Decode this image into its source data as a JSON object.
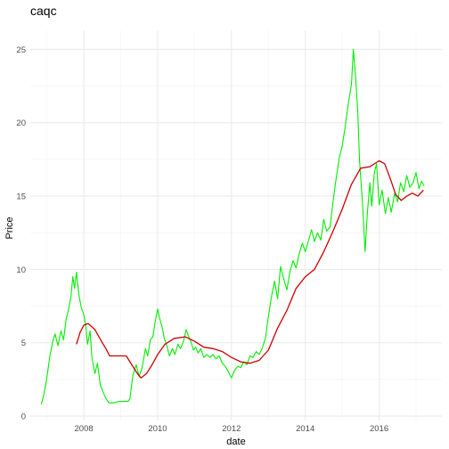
{
  "chart_data": {
    "type": "line",
    "title": "caqc",
    "xlabel": "date",
    "ylabel": "Price",
    "xlim": [
      2006.55,
      2017.7
    ],
    "ylim": [
      -0.3,
      26.3
    ],
    "x_ticks": [
      2008,
      2010,
      2012,
      2014,
      2016
    ],
    "y_ticks": [
      0,
      5,
      10,
      15,
      20,
      25
    ],
    "grid": true,
    "legend": "none",
    "series": [
      {
        "color": "#00ee00",
        "points": [
          [
            2006.85,
            0.8
          ],
          [
            2006.92,
            1.5
          ],
          [
            2007.0,
            2.6
          ],
          [
            2007.08,
            4.1
          ],
          [
            2007.15,
            5.0
          ],
          [
            2007.22,
            5.6
          ],
          [
            2007.3,
            4.8
          ],
          [
            2007.38,
            5.8
          ],
          [
            2007.45,
            5.2
          ],
          [
            2007.52,
            6.6
          ],
          [
            2007.58,
            7.2
          ],
          [
            2007.65,
            8.1
          ],
          [
            2007.7,
            9.5
          ],
          [
            2007.75,
            8.7
          ],
          [
            2007.8,
            9.8
          ],
          [
            2007.87,
            8.2
          ],
          [
            2007.93,
            7.4
          ],
          [
            2008.0,
            6.9
          ],
          [
            2008.05,
            6.2
          ],
          [
            2008.1,
            4.9
          ],
          [
            2008.17,
            5.8
          ],
          [
            2008.22,
            4.0
          ],
          [
            2008.3,
            2.9
          ],
          [
            2008.37,
            3.6
          ],
          [
            2008.45,
            2.1
          ],
          [
            2008.53,
            1.6
          ],
          [
            2008.6,
            1.2
          ],
          [
            2008.68,
            0.9
          ],
          [
            2008.8,
            0.9
          ],
          [
            2008.95,
            1.0
          ],
          [
            2009.1,
            1.0
          ],
          [
            2009.2,
            1.0
          ],
          [
            2009.25,
            1.2
          ],
          [
            2009.33,
            2.8
          ],
          [
            2009.42,
            3.5
          ],
          [
            2009.5,
            2.7
          ],
          [
            2009.58,
            3.3
          ],
          [
            2009.67,
            4.6
          ],
          [
            2009.73,
            4.1
          ],
          [
            2009.8,
            5.2
          ],
          [
            2009.87,
            5.4
          ],
          [
            2009.93,
            6.4
          ],
          [
            2010.0,
            7.3
          ],
          [
            2010.05,
            6.7
          ],
          [
            2010.12,
            6.1
          ],
          [
            2010.18,
            5.3
          ],
          [
            2010.25,
            4.8
          ],
          [
            2010.32,
            4.1
          ],
          [
            2010.4,
            4.6
          ],
          [
            2010.47,
            4.2
          ],
          [
            2010.55,
            4.9
          ],
          [
            2010.62,
            4.6
          ],
          [
            2010.7,
            5.1
          ],
          [
            2010.77,
            5.9
          ],
          [
            2010.83,
            5.5
          ],
          [
            2010.9,
            5.1
          ],
          [
            2010.97,
            4.5
          ],
          [
            2011.03,
            4.7
          ],
          [
            2011.1,
            4.3
          ],
          [
            2011.17,
            4.6
          ],
          [
            2011.25,
            4.0
          ],
          [
            2011.33,
            4.2
          ],
          [
            2011.42,
            4.0
          ],
          [
            2011.5,
            4.2
          ],
          [
            2011.58,
            3.9
          ],
          [
            2011.67,
            4.1
          ],
          [
            2011.75,
            3.6
          ],
          [
            2011.83,
            3.4
          ],
          [
            2011.92,
            3.0
          ],
          [
            2012.0,
            2.6
          ],
          [
            2012.08,
            3.1
          ],
          [
            2012.17,
            3.4
          ],
          [
            2012.25,
            3.3
          ],
          [
            2012.33,
            3.7
          ],
          [
            2012.42,
            3.5
          ],
          [
            2012.5,
            4.1
          ],
          [
            2012.58,
            4.0
          ],
          [
            2012.67,
            4.4
          ],
          [
            2012.75,
            4.2
          ],
          [
            2012.83,
            4.6
          ],
          [
            2012.92,
            5.3
          ],
          [
            2013.0,
            6.8
          ],
          [
            2013.08,
            8.1
          ],
          [
            2013.17,
            9.2
          ],
          [
            2013.25,
            8.0
          ],
          [
            2013.33,
            10.2
          ],
          [
            2013.42,
            9.3
          ],
          [
            2013.5,
            8.6
          ],
          [
            2013.58,
            9.8
          ],
          [
            2013.67,
            10.6
          ],
          [
            2013.75,
            10.1
          ],
          [
            2013.83,
            11.0
          ],
          [
            2013.92,
            11.8
          ],
          [
            2014.0,
            11.2
          ],
          [
            2014.08,
            11.9
          ],
          [
            2014.17,
            12.7
          ],
          [
            2014.25,
            11.9
          ],
          [
            2014.33,
            12.5
          ],
          [
            2014.42,
            12.0
          ],
          [
            2014.5,
            13.4
          ],
          [
            2014.58,
            12.6
          ],
          [
            2014.67,
            12.9
          ],
          [
            2014.75,
            14.6
          ],
          [
            2014.83,
            16.1
          ],
          [
            2014.92,
            17.6
          ],
          [
            2015.0,
            18.4
          ],
          [
            2015.08,
            19.7
          ],
          [
            2015.17,
            21.4
          ],
          [
            2015.25,
            22.6
          ],
          [
            2015.3,
            25.0
          ],
          [
            2015.35,
            23.6
          ],
          [
            2015.42,
            20.9
          ],
          [
            2015.47,
            17.4
          ],
          [
            2015.52,
            15.6
          ],
          [
            2015.57,
            13.7
          ],
          [
            2015.62,
            11.2
          ],
          [
            2015.68,
            13.8
          ],
          [
            2015.75,
            15.9
          ],
          [
            2015.8,
            14.3
          ],
          [
            2015.87,
            16.6
          ],
          [
            2015.93,
            17.2
          ],
          [
            2016.0,
            14.4
          ],
          [
            2016.08,
            15.4
          ],
          [
            2016.17,
            13.8
          ],
          [
            2016.25,
            14.9
          ],
          [
            2016.33,
            13.9
          ],
          [
            2016.42,
            15.2
          ],
          [
            2016.5,
            14.6
          ],
          [
            2016.58,
            15.9
          ],
          [
            2016.67,
            15.3
          ],
          [
            2016.75,
            16.4
          ],
          [
            2016.83,
            15.6
          ],
          [
            2016.92,
            15.9
          ],
          [
            2017.0,
            16.6
          ],
          [
            2017.08,
            15.5
          ],
          [
            2017.15,
            16.0
          ],
          [
            2017.22,
            15.7
          ]
        ]
      },
      {
        "color": "#cc0000",
        "points": [
          [
            2007.8,
            4.9
          ],
          [
            2007.9,
            5.7
          ],
          [
            2008.0,
            6.2
          ],
          [
            2008.12,
            6.3
          ],
          [
            2008.3,
            5.9
          ],
          [
            2008.5,
            5.0
          ],
          [
            2008.6,
            4.6
          ],
          [
            2008.7,
            4.1
          ],
          [
            2009.15,
            4.1
          ],
          [
            2009.3,
            3.5
          ],
          [
            2009.45,
            2.9
          ],
          [
            2009.55,
            2.6
          ],
          [
            2009.7,
            2.9
          ],
          [
            2009.85,
            3.5
          ],
          [
            2010.0,
            4.2
          ],
          [
            2010.2,
            4.9
          ],
          [
            2010.45,
            5.3
          ],
          [
            2010.75,
            5.4
          ],
          [
            2011.0,
            5.1
          ],
          [
            2011.25,
            4.7
          ],
          [
            2011.5,
            4.6
          ],
          [
            2011.75,
            4.4
          ],
          [
            2012.0,
            4.0
          ],
          [
            2012.25,
            3.7
          ],
          [
            2012.5,
            3.6
          ],
          [
            2012.75,
            3.8
          ],
          [
            2013.0,
            4.5
          ],
          [
            2013.25,
            6.0
          ],
          [
            2013.5,
            7.2
          ],
          [
            2013.75,
            8.7
          ],
          [
            2014.0,
            9.5
          ],
          [
            2014.25,
            10.0
          ],
          [
            2014.5,
            11.2
          ],
          [
            2014.75,
            12.6
          ],
          [
            2015.0,
            14.1
          ],
          [
            2015.25,
            15.8
          ],
          [
            2015.5,
            16.9
          ],
          [
            2015.75,
            17.0
          ],
          [
            2016.0,
            17.4
          ],
          [
            2016.15,
            17.2
          ],
          [
            2016.3,
            16.2
          ],
          [
            2016.45,
            15.1
          ],
          [
            2016.6,
            14.7
          ],
          [
            2016.75,
            15.0
          ],
          [
            2016.9,
            15.2
          ],
          [
            2017.05,
            15.0
          ],
          [
            2017.2,
            15.4
          ]
        ]
      }
    ]
  }
}
